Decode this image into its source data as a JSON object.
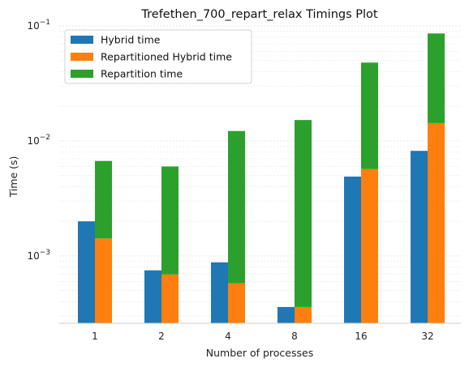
{
  "chart_data": {
    "type": "bar",
    "title": "Trefethen_700_repart_relax Timings Plot",
    "xlabel": "Number of processes",
    "ylabel": "Time (s)",
    "yscale": "log",
    "ylim": [
      0.00026,
      0.1
    ],
    "yticks": [
      {
        "value": 0.001,
        "base": "10",
        "exp": "−3"
      },
      {
        "value": 0.01,
        "base": "10",
        "exp": "−2"
      },
      {
        "value": 0.1,
        "base": "10",
        "exp": "−1"
      }
    ],
    "categories": [
      "1",
      "2",
      "4",
      "8",
      "16",
      "32"
    ],
    "series": [
      {
        "name": "Hybrid time",
        "color": "#1f77b4",
        "stack": "hybrid",
        "values": [
          0.002,
          0.00075,
          0.00088,
          0.00036,
          0.0049,
          0.0082
        ]
      },
      {
        "name": "Repartitioned Hybrid time",
        "color": "#ff7f0e",
        "stack": "repart",
        "values": [
          0.00142,
          0.00069,
          0.00058,
          0.00036,
          0.0057,
          0.0143
        ]
      },
      {
        "name": "Repartition time",
        "color": "#2ca02c",
        "stack": "repart",
        "stacked_on": "Repartitioned Hybrid time",
        "values": [
          0.00528,
          0.00531,
          0.01162,
          0.01484,
          0.0423,
          0.0717
        ]
      }
    ],
    "legend": "top-left",
    "grid": "y-major-and-minor-dashed"
  }
}
